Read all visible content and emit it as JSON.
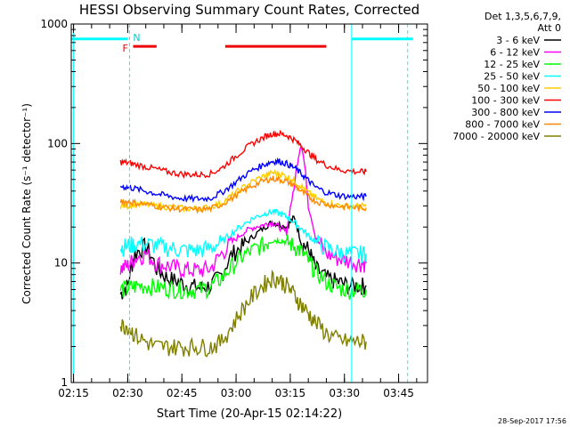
{
  "chart_data": {
    "type": "line",
    "title": "HESSI Observing Summary Count Rates, Corrected",
    "xlabel": "Start Time (20-Apr-15 02:14:22)",
    "ylabel": "Corrected Count Rate (s⁻¹ detector⁻¹)",
    "y_scale": "log",
    "ylim": [
      1,
      1000
    ],
    "xlim": [
      "02:14:22",
      "03:53:00"
    ],
    "x_ticks": [
      "02:15",
      "02:30",
      "02:45",
      "03:00",
      "03:15",
      "03:30",
      "03:45"
    ],
    "y_ticks": [
      "1",
      "10",
      "100",
      "1000"
    ],
    "grid": false,
    "legend_position": "top-right",
    "legend_header": [
      "Det 1,3,5,6,7,9,",
      "Att 0"
    ],
    "footer_timestamp": "28-Sep-2017 17:56",
    "x_unit": "time (hh:mm)",
    "series": [
      {
        "name": "3 - 6 keV",
        "color": "#000000",
        "x": [
          "02:28",
          "02:30",
          "02:32",
          "02:35",
          "02:38",
          "02:41",
          "02:44",
          "02:47",
          "02:50",
          "02:53",
          "02:56",
          "02:59",
          "03:02",
          "03:05",
          "03:08",
          "03:10",
          "03:12",
          "03:14",
          "03:16",
          "03:18",
          "03:20",
          "03:22",
          "03:25",
          "03:28",
          "03:31",
          "03:34",
          "03:36"
        ],
        "y": [
          5.5,
          6.5,
          12,
          14,
          9,
          7.5,
          7,
          6.5,
          6.2,
          6.5,
          8,
          12,
          14,
          17,
          20,
          22,
          21,
          20,
          24,
          15,
          13,
          9,
          7.5,
          7,
          6.5,
          6.5,
          6.5
        ]
      },
      {
        "name": "6 - 12 keV",
        "color": "#ff00ff",
        "x": [
          "02:28",
          "02:30",
          "02:32",
          "02:35",
          "02:38",
          "02:41",
          "02:44",
          "02:47",
          "02:50",
          "02:53",
          "02:56",
          "02:59",
          "03:02",
          "03:05",
          "03:08",
          "03:10",
          "03:12",
          "03:14",
          "03:16",
          "03:18",
          "03:20",
          "03:22",
          "03:25",
          "03:28",
          "03:31",
          "03:34",
          "03:36"
        ],
        "y": [
          9,
          9.5,
          11,
          12,
          10,
          9.5,
          9,
          8.8,
          8.7,
          9,
          12,
          15,
          18,
          20,
          21,
          22,
          20,
          18,
          40,
          100,
          30,
          16,
          12,
          11,
          10.5,
          10,
          10
        ]
      },
      {
        "name": "12 - 25 keV",
        "color": "#00ff00",
        "x": [
          "02:28",
          "02:30",
          "02:32",
          "02:35",
          "02:38",
          "02:41",
          "02:44",
          "02:47",
          "02:50",
          "02:53",
          "02:56",
          "02:59",
          "03:02",
          "03:05",
          "03:08",
          "03:10",
          "03:12",
          "03:14",
          "03:16",
          "03:18",
          "03:20",
          "03:22",
          "03:25",
          "03:28",
          "03:31",
          "03:34",
          "03:36"
        ],
        "y": [
          6,
          6.2,
          6.4,
          6.5,
          6.3,
          6.2,
          6.1,
          6,
          6,
          6.3,
          7.5,
          9.5,
          11.5,
          13,
          14.5,
          15.5,
          15.5,
          15,
          14,
          12.5,
          10.5,
          8.5,
          7,
          6.2,
          6,
          6,
          6
        ]
      },
      {
        "name": "25 - 50 keV",
        "color": "#00ffff",
        "x": [
          "02:28",
          "02:30",
          "02:32",
          "02:35",
          "02:38",
          "02:41",
          "02:44",
          "02:47",
          "02:50",
          "02:53",
          "02:56",
          "02:59",
          "03:02",
          "03:05",
          "03:08",
          "03:10",
          "03:12",
          "03:14",
          "03:16",
          "03:18",
          "03:20",
          "03:22",
          "03:25",
          "03:28",
          "03:31",
          "03:34",
          "03:36"
        ],
        "y": [
          13.5,
          14,
          14.5,
          14.5,
          14,
          13.5,
          13,
          12.8,
          12.8,
          13.5,
          15,
          18,
          21,
          24,
          26,
          27,
          26,
          24.5,
          22,
          19.5,
          17,
          15,
          13.5,
          12.5,
          12,
          12,
          12
        ]
      },
      {
        "name": "50 - 100 keV",
        "color": "#ffcc00",
        "x": [
          "02:28",
          "02:30",
          "02:32",
          "02:35",
          "02:38",
          "02:41",
          "02:44",
          "02:47",
          "02:50",
          "02:53",
          "02:56",
          "02:59",
          "03:02",
          "03:05",
          "03:08",
          "03:10",
          "03:12",
          "03:14",
          "03:16",
          "03:18",
          "03:20",
          "03:22",
          "03:25",
          "03:28",
          "03:31",
          "03:34",
          "03:36"
        ],
        "y": [
          30,
          30,
          31,
          31,
          30,
          29.5,
          29,
          28.5,
          28.5,
          29.5,
          32,
          37,
          43,
          49,
          54,
          57,
          56,
          53,
          49,
          44,
          39,
          35,
          32,
          30.5,
          30,
          30,
          30
        ]
      },
      {
        "name": "100 - 300 keV",
        "color": "#ff0000",
        "x": [
          "02:28",
          "02:30",
          "02:32",
          "02:35",
          "02:38",
          "02:41",
          "02:44",
          "02:47",
          "02:50",
          "02:53",
          "02:56",
          "02:59",
          "03:02",
          "03:05",
          "03:08",
          "03:10",
          "03:12",
          "03:14",
          "03:16",
          "03:18",
          "03:20",
          "03:22",
          "03:25",
          "03:28",
          "03:31",
          "03:34",
          "03:36"
        ],
        "y": [
          70,
          69,
          67,
          64,
          61,
          58,
          56,
          55,
          55,
          56,
          62,
          74,
          88,
          102,
          114,
          121,
          121,
          117,
          108,
          96,
          84,
          74,
          66,
          61,
          59,
          58,
          58
        ]
      },
      {
        "name": "300 - 800 keV",
        "color": "#0000ff",
        "x": [
          "02:28",
          "02:30",
          "02:32",
          "02:35",
          "02:38",
          "02:41",
          "02:44",
          "02:47",
          "02:50",
          "02:53",
          "02:56",
          "02:59",
          "03:02",
          "03:05",
          "03:08",
          "03:10",
          "03:12",
          "03:14",
          "03:16",
          "03:18",
          "03:20",
          "03:22",
          "03:25",
          "03:28",
          "03:31",
          "03:34",
          "03:36"
        ],
        "y": [
          44,
          43,
          42,
          40,
          38,
          36.5,
          35,
          34.5,
          34.5,
          35,
          39,
          45,
          53,
          61,
          67,
          71,
          71,
          68,
          63,
          56,
          49,
          43,
          39,
          37,
          36,
          36,
          36
        ]
      },
      {
        "name": "800 - 7000 keV",
        "color": "#ff8800",
        "x": [
          "02:28",
          "02:30",
          "02:32",
          "02:35",
          "02:38",
          "02:41",
          "02:44",
          "02:47",
          "02:50",
          "02:53",
          "02:56",
          "02:59",
          "03:02",
          "03:05",
          "03:08",
          "03:10",
          "03:12",
          "03:14",
          "03:16",
          "03:18",
          "03:20",
          "03:22",
          "03:25",
          "03:28",
          "03:31",
          "03:34",
          "03:36"
        ],
        "y": [
          33,
          32.5,
          32,
          31,
          30,
          29,
          28.5,
          28,
          28,
          28.5,
          31,
          35,
          40,
          45,
          49,
          51,
          50,
          48,
          45,
          40,
          36,
          33,
          31,
          30,
          29.5,
          29,
          29
        ]
      },
      {
        "name": "7000 - 20000 keV",
        "color": "#808000",
        "x": [
          "02:28",
          "02:30",
          "02:32",
          "02:35",
          "02:38",
          "02:41",
          "02:44",
          "02:47",
          "02:50",
          "02:53",
          "02:56",
          "02:59",
          "03:02",
          "03:05",
          "03:08",
          "03:10",
          "03:12",
          "03:14",
          "03:16",
          "03:18",
          "03:20",
          "03:22",
          "03:25",
          "03:28",
          "03:31",
          "03:34",
          "03:36"
        ],
        "y": [
          3,
          3,
          2.5,
          2.2,
          2,
          2,
          2,
          2,
          2,
          2,
          2.2,
          3,
          4.2,
          5.5,
          6.8,
          7.5,
          7.3,
          6.5,
          5.5,
          4.5,
          3.8,
          3.2,
          2.6,
          2.3,
          2.2,
          2.2,
          2.2
        ]
      }
    ],
    "annotations": {
      "cyan_bars": [
        {
          "from": "02:14:22",
          "to": "02:30:00",
          "y": 750
        },
        {
          "from": "03:32:00",
          "to": "03:49:00",
          "y": 750
        }
      ],
      "red_bars": [
        {
          "label": "F",
          "from": "02:31:30",
          "to": "02:38:00",
          "y": 650
        },
        {
          "label": "",
          "from": "02:57:00",
          "to": "03:25:00",
          "y": 650
        }
      ],
      "n_label": "N",
      "vertical_solid": [
        "02:15:00",
        "03:32:00"
      ],
      "vertical_dashed": [
        "02:30:30",
        "03:47:30"
      ]
    }
  }
}
